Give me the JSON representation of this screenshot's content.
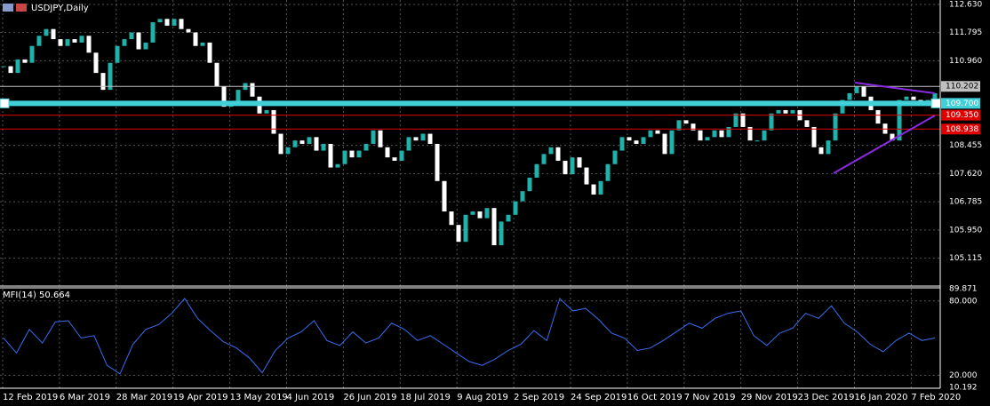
{
  "chart_data": {
    "type": "candlestick",
    "title": "USDJPY,Daily",
    "values": [
      110.8,
      110.6,
      111.0,
      110.9,
      111.4,
      111.7,
      111.9,
      111.6,
      111.4,
      111.6,
      111.5,
      111.7,
      111.2,
      110.6,
      110.1,
      110.9,
      111.4,
      111.6,
      111.8,
      111.3,
      111.5,
      112.1,
      112.2,
      112.0,
      112.2,
      111.9,
      111.8,
      111.4,
      111.5,
      110.9,
      110.2,
      109.6,
      109.7,
      110.1,
      110.3,
      109.9,
      109.4,
      109.5,
      108.8,
      108.2,
      108.4,
      108.6,
      108.5,
      108.7,
      108.3,
      108.5,
      107.8,
      107.9,
      108.3,
      108.1,
      108.3,
      108.5,
      108.9,
      108.4,
      108.1,
      108.0,
      108.3,
      108.7,
      108.6,
      108.8,
      108.5,
      107.4,
      106.5,
      106.1,
      105.6,
      106.4,
      106.5,
      106.3,
      106.6,
      105.5,
      106.2,
      106.4,
      106.8,
      107.1,
      107.5,
      107.9,
      108.2,
      108.4,
      108.0,
      107.6,
      108.1,
      107.8,
      107.3,
      107.0,
      107.4,
      107.9,
      108.3,
      108.7,
      108.6,
      108.5,
      108.7,
      108.9,
      108.8,
      108.2,
      108.9,
      109.2,
      109.1,
      108.9,
      108.6,
      108.7,
      108.9,
      108.7,
      109.0,
      109.4,
      109.0,
      108.6,
      108.6,
      108.9,
      109.4,
      109.5,
      109.4,
      109.5,
      109.2,
      109.0,
      108.4,
      108.2,
      108.6,
      109.4,
      109.8,
      110.0,
      110.2,
      109.9,
      109.5,
      109.1,
      108.8,
      108.6,
      109.8,
      109.9,
      109.8,
      109.7,
      109.8,
      110.0
    ],
    "up_color": "#20b2aa",
    "down_color": "#ffffff",
    "ylim": [
      104.29,
      112.76
    ],
    "yticks": [
      {
        "value": 112.63,
        "label": "112.630"
      },
      {
        "value": 111.795,
        "label": "111.795"
      },
      {
        "value": 110.96,
        "label": "110.960"
      },
      {
        "value": 108.455,
        "label": "108.455"
      },
      {
        "value": 107.62,
        "label": "107.620"
      },
      {
        "value": 106.785,
        "label": "106.785"
      },
      {
        "value": 105.95,
        "label": "105.950"
      },
      {
        "value": 105.115,
        "label": "105.115"
      }
    ],
    "levels": [
      {
        "value": 110.202,
        "label": "110.202",
        "color": "#c0c0c0"
      },
      {
        "value": 109.7,
        "label": "109.700",
        "color": "#40d0d8"
      },
      {
        "value": 109.35,
        "label": "109.350",
        "color": "#e00000"
      },
      {
        "value": 108.938,
        "label": "108.938",
        "color": "#e00000"
      }
    ],
    "xlabels": [
      "12 Feb 2019",
      "6 Mar 2019",
      "28 Mar 2019",
      "19 Apr 2019",
      "13 May 2019",
      "4 Jun 2019",
      "26 Jun 2019",
      "18 Jul 2019",
      "9 Aug 2019",
      "2 Sep 2019",
      "24 Sep 2019",
      "16 Oct 2019",
      "7 Nov 2019",
      "29 Nov 2019",
      "23 Dec 2019",
      "16 Jan 2020",
      "7 Feb 2020"
    ],
    "grid": true,
    "indicator": {
      "type": "line",
      "title": "MFI(14) 50.664",
      "color": "#3a6df0",
      "values": [
        50,
        38,
        57,
        46,
        63,
        64,
        50,
        52,
        28,
        21,
        45,
        57,
        61,
        70,
        82,
        66,
        56,
        47,
        42,
        34,
        22,
        40,
        50,
        55,
        64,
        48,
        44,
        55,
        46,
        50,
        62,
        57,
        48,
        52,
        45,
        38,
        31,
        28,
        33,
        40,
        45,
        56,
        48,
        82,
        72,
        74,
        65,
        54,
        50,
        40,
        42,
        48,
        55,
        62,
        58,
        66,
        70,
        72,
        52,
        44,
        54,
        58,
        70,
        66,
        76,
        62,
        55,
        45,
        39,
        48,
        54,
        48,
        50
      ],
      "ylim": [
        10.192,
        89.871
      ],
      "yticks": [
        {
          "value": 89.871,
          "label": "89.871"
        },
        {
          "value": 80,
          "label": "80.000"
        },
        {
          "value": 20,
          "label": "20.000"
        },
        {
          "value": 10.192,
          "label": "10.192"
        }
      ]
    }
  }
}
